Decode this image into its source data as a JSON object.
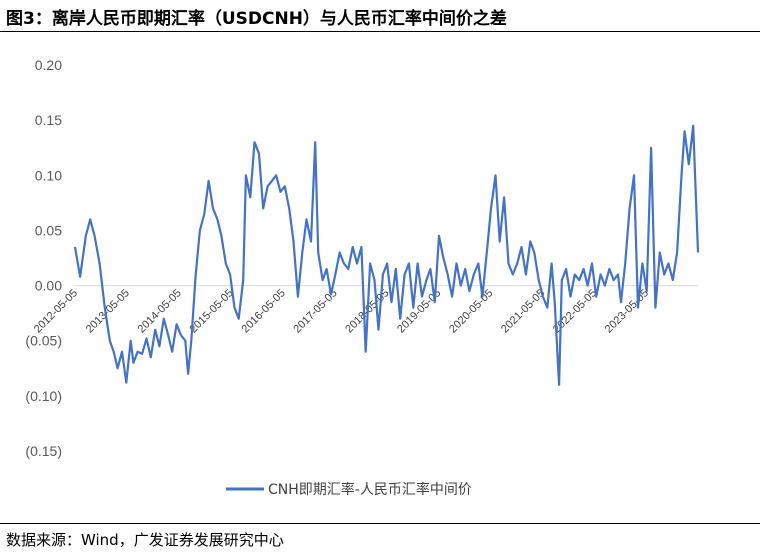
{
  "header": {
    "title": "图3：离岸人民币即期汇率（USDCNH）与人民币汇率中间价之差"
  },
  "footer": {
    "source": "数据来源：Wind，广发证券发展研究中心"
  },
  "colors": {
    "line": "#4472C4",
    "zero_line": "#d9d9d9",
    "text": "#595959"
  },
  "chart_data": {
    "type": "line",
    "title": "",
    "xlabel": "",
    "ylabel": "",
    "ylim": [
      -0.15,
      0.2
    ],
    "y_ticks": [
      0.2,
      0.15,
      0.1,
      0.05,
      0.0,
      -0.05,
      -0.1,
      -0.15
    ],
    "y_tick_labels": [
      "0.20",
      "0.15",
      "0.10",
      "0.05",
      "0.00",
      "(0.05)",
      "(0.10)",
      "(0.15)"
    ],
    "x_ticks": [
      "2012-05-05",
      "2013-05-05",
      "2014-05-05",
      "2015-05-05",
      "2016-05-05",
      "2017-05-05",
      "2018-05-05",
      "2019-05-05",
      "2020-05-05",
      "2021-05-05",
      "2022-05-05",
      "2023-05-05"
    ],
    "xlim": [
      "2012-05-05",
      "2024-05-05"
    ],
    "grid": false,
    "legend_position": "bottom",
    "series": [
      {
        "name": "CNH即期汇率-人民币汇率中间价",
        "points": [
          [
            "2012-05-05",
            0.035
          ],
          [
            "2012-06-10",
            0.008
          ],
          [
            "2012-07-20",
            0.045
          ],
          [
            "2012-08-20",
            0.06
          ],
          [
            "2012-09-20",
            0.045
          ],
          [
            "2012-10-25",
            0.02
          ],
          [
            "2012-12-01",
            -0.02
          ],
          [
            "2013-01-05",
            -0.05
          ],
          [
            "2013-02-01",
            -0.06
          ],
          [
            "2013-03-01",
            -0.075
          ],
          [
            "2013-04-01",
            -0.06
          ],
          [
            "2013-05-01",
            -0.088
          ],
          [
            "2013-06-01",
            -0.05
          ],
          [
            "2013-06-20",
            -0.07
          ],
          [
            "2013-07-20",
            -0.06
          ],
          [
            "2013-08-20",
            -0.062
          ],
          [
            "2013-09-20",
            -0.048
          ],
          [
            "2013-10-20",
            -0.065
          ],
          [
            "2013-11-20",
            -0.04
          ],
          [
            "2013-12-20",
            -0.055
          ],
          [
            "2014-01-20",
            -0.03
          ],
          [
            "2014-02-20",
            -0.045
          ],
          [
            "2014-03-20",
            -0.06
          ],
          [
            "2014-04-20",
            -0.035
          ],
          [
            "2014-05-20",
            -0.045
          ],
          [
            "2014-06-20",
            -0.05
          ],
          [
            "2014-07-10",
            -0.08
          ],
          [
            "2014-08-01",
            -0.05
          ],
          [
            "2014-09-01",
            0.01
          ],
          [
            "2014-10-01",
            0.05
          ],
          [
            "2014-11-01",
            0.065
          ],
          [
            "2014-12-01",
            0.095
          ],
          [
            "2015-01-01",
            0.07
          ],
          [
            "2015-02-01",
            0.06
          ],
          [
            "2015-03-01",
            0.045
          ],
          [
            "2015-04-01",
            0.02
          ],
          [
            "2015-05-01",
            0.01
          ],
          [
            "2015-06-01",
            -0.02
          ],
          [
            "2015-07-01",
            -0.03
          ],
          [
            "2015-08-01",
            0.005
          ],
          [
            "2015-08-20",
            0.1
          ],
          [
            "2015-09-20",
            0.08
          ],
          [
            "2015-10-20",
            0.13
          ],
          [
            "2015-11-20",
            0.12
          ],
          [
            "2015-12-20",
            0.07
          ],
          [
            "2016-01-20",
            0.09
          ],
          [
            "2016-02-20",
            0.095
          ],
          [
            "2016-03-20",
            0.1
          ],
          [
            "2016-04-20",
            0.085
          ],
          [
            "2016-05-20",
            0.09
          ],
          [
            "2016-06-20",
            0.07
          ],
          [
            "2016-07-20",
            0.04
          ],
          [
            "2016-08-20",
            -0.01
          ],
          [
            "2016-09-20",
            0.03
          ],
          [
            "2016-10-20",
            0.06
          ],
          [
            "2016-11-20",
            0.04
          ],
          [
            "2016-12-20",
            0.13
          ],
          [
            "2017-01-10",
            0.03
          ],
          [
            "2017-02-10",
            0.005
          ],
          [
            "2017-03-10",
            0.015
          ],
          [
            "2017-04-10",
            -0.008
          ],
          [
            "2017-05-10",
            0.01
          ],
          [
            "2017-06-10",
            0.03
          ],
          [
            "2017-07-10",
            0.02
          ],
          [
            "2017-08-10",
            0.015
          ],
          [
            "2017-09-10",
            0.035
          ],
          [
            "2017-10-10",
            0.02
          ],
          [
            "2017-11-10",
            0.035
          ],
          [
            "2017-12-10",
            -0.06
          ],
          [
            "2018-01-10",
            0.02
          ],
          [
            "2018-02-10",
            0.005
          ],
          [
            "2018-03-10",
            -0.04
          ],
          [
            "2018-04-10",
            0.01
          ],
          [
            "2018-05-10",
            0.02
          ],
          [
            "2018-06-10",
            -0.015
          ],
          [
            "2018-07-10",
            0.015
          ],
          [
            "2018-08-10",
            -0.03
          ],
          [
            "2018-09-10",
            0.01
          ],
          [
            "2018-10-10",
            0.02
          ],
          [
            "2018-11-10",
            -0.02
          ],
          [
            "2018-12-10",
            0.02
          ],
          [
            "2019-01-10",
            -0.01
          ],
          [
            "2019-02-10",
            0.005
          ],
          [
            "2019-03-10",
            0.015
          ],
          [
            "2019-04-10",
            -0.015
          ],
          [
            "2019-05-10",
            0.045
          ],
          [
            "2019-06-10",
            0.025
          ],
          [
            "2019-07-10",
            0.01
          ],
          [
            "2019-08-10",
            -0.01
          ],
          [
            "2019-09-10",
            0.02
          ],
          [
            "2019-10-10",
            0.0
          ],
          [
            "2019-11-10",
            0.015
          ],
          [
            "2019-12-10",
            -0.005
          ],
          [
            "2020-01-10",
            0.01
          ],
          [
            "2020-02-10",
            0.02
          ],
          [
            "2020-03-10",
            -0.01
          ],
          [
            "2020-04-10",
            0.03
          ],
          [
            "2020-05-10",
            0.07
          ],
          [
            "2020-06-10",
            0.1
          ],
          [
            "2020-07-10",
            0.04
          ],
          [
            "2020-08-10",
            0.08
          ],
          [
            "2020-09-10",
            0.02
          ],
          [
            "2020-10-10",
            0.01
          ],
          [
            "2020-11-10",
            0.02
          ],
          [
            "2020-12-10",
            0.035
          ],
          [
            "2021-01-10",
            0.01
          ],
          [
            "2021-02-10",
            0.04
          ],
          [
            "2021-03-10",
            0.03
          ],
          [
            "2021-04-10",
            0.005
          ],
          [
            "2021-05-10",
            -0.01
          ],
          [
            "2021-06-10",
            -0.02
          ],
          [
            "2021-07-10",
            0.02
          ],
          [
            "2021-08-01",
            -0.015
          ],
          [
            "2021-09-01",
            -0.09
          ],
          [
            "2021-09-20",
            0.005
          ],
          [
            "2021-10-20",
            0.015
          ],
          [
            "2021-11-20",
            -0.01
          ],
          [
            "2021-12-20",
            0.01
          ],
          [
            "2022-01-20",
            0.005
          ],
          [
            "2022-02-20",
            0.015
          ],
          [
            "2022-03-20",
            0.0
          ],
          [
            "2022-04-20",
            0.02
          ],
          [
            "2022-05-20",
            -0.01
          ],
          [
            "2022-06-20",
            0.01
          ],
          [
            "2022-07-20",
            0.0
          ],
          [
            "2022-08-20",
            0.015
          ],
          [
            "2022-09-20",
            0.005
          ],
          [
            "2022-10-20",
            0.01
          ],
          [
            "2022-11-10",
            -0.015
          ],
          [
            "2022-12-10",
            0.02
          ],
          [
            "2023-01-10",
            0.07
          ],
          [
            "2023-02-10",
            0.1
          ],
          [
            "2023-03-10",
            -0.02
          ],
          [
            "2023-04-10",
            0.02
          ],
          [
            "2023-05-10",
            -0.005
          ],
          [
            "2023-06-10",
            0.125
          ],
          [
            "2023-07-10",
            -0.02
          ],
          [
            "2023-08-10",
            0.03
          ],
          [
            "2023-09-10",
            0.01
          ],
          [
            "2023-10-10",
            0.02
          ],
          [
            "2023-11-10",
            0.005
          ],
          [
            "2023-12-10",
            0.03
          ],
          [
            "2024-01-10",
            0.1
          ],
          [
            "2024-02-01",
            0.14
          ],
          [
            "2024-03-01",
            0.11
          ],
          [
            "2024-04-01",
            0.145
          ],
          [
            "2024-05-05",
            0.03
          ]
        ]
      }
    ]
  }
}
